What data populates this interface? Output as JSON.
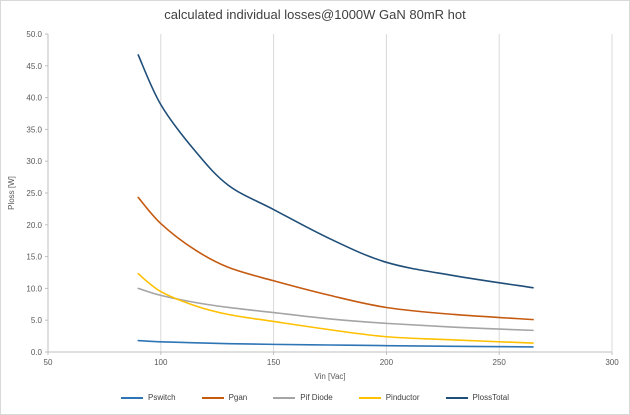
{
  "chart_data": {
    "type": "line",
    "title": "calculated individual losses@1000W  GaN 80mR hot",
    "xlabel": "Vin [Vac]",
    "ylabel": "Ploss [W]",
    "xlim": [
      50,
      300
    ],
    "ylim": [
      0,
      50
    ],
    "xticks": [
      50,
      100,
      150,
      200,
      250,
      300
    ],
    "yticks": [
      "0.0",
      "5.0",
      "10.0",
      "15.0",
      "20.0",
      "25.0",
      "30.0",
      "35.0",
      "40.0",
      "45.0",
      "50.0"
    ],
    "grid": "vertical",
    "legend_position": "bottom",
    "x": [
      90,
      100,
      115,
      130,
      150,
      175,
      200,
      230,
      265
    ],
    "series": [
      {
        "name": "Pswitch",
        "color": "#2e75b6",
        "values": [
          1.8,
          1.6,
          1.45,
          1.3,
          1.2,
          1.1,
          1.0,
          0.9,
          0.8
        ]
      },
      {
        "name": "Pgan",
        "color": "#c55a11",
        "values": [
          24.3,
          20.2,
          16.1,
          13.3,
          11.2,
          8.9,
          7.0,
          5.9,
          5.1
        ]
      },
      {
        "name": "Pif Diode",
        "color": "#a5a5a5",
        "values": [
          10.0,
          8.9,
          7.8,
          7.0,
          6.2,
          5.2,
          4.5,
          3.9,
          3.4
        ]
      },
      {
        "name": "Pinductor",
        "color": "#ffc000",
        "values": [
          12.3,
          9.5,
          7.3,
          5.9,
          4.8,
          3.5,
          2.4,
          1.9,
          1.4
        ]
      },
      {
        "name": "PlossTotal",
        "color": "#1f4e79",
        "values": [
          46.7,
          38.9,
          31.7,
          26.2,
          22.4,
          17.8,
          14.1,
          12.0,
          10.1
        ]
      }
    ]
  }
}
